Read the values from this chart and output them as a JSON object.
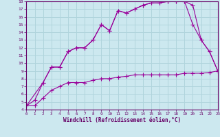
{
  "line1_x": [
    0,
    1,
    2,
    3,
    4,
    5,
    6,
    7,
    8,
    9,
    10,
    11,
    12,
    13,
    14,
    15,
    16,
    17,
    18,
    19,
    20,
    21,
    22,
    23
  ],
  "line1_y": [
    4.5,
    5.2,
    7.5,
    9.5,
    9.5,
    11.5,
    12.0,
    12.0,
    13.0,
    15.0,
    14.2,
    16.8,
    16.5,
    17.0,
    17.5,
    17.8,
    17.8,
    18.0,
    18.0,
    18.0,
    17.5,
    13.0,
    11.5,
    9.0
  ],
  "line2_x": [
    0,
    2,
    3,
    4,
    5,
    6,
    7,
    8,
    9,
    10,
    11,
    12,
    13,
    14,
    15,
    16,
    17,
    18,
    19,
    20,
    21,
    22,
    23
  ],
  "line2_y": [
    4.5,
    7.5,
    9.5,
    9.5,
    11.5,
    12.0,
    12.0,
    13.0,
    15.0,
    14.2,
    16.8,
    16.5,
    17.0,
    17.5,
    17.8,
    17.8,
    18.0,
    18.0,
    18.0,
    15.0,
    13.0,
    11.5,
    9.0
  ],
  "line3_x": [
    0,
    1,
    2,
    3,
    4,
    5,
    6,
    7,
    8,
    9,
    10,
    11,
    12,
    13,
    14,
    15,
    16,
    17,
    18,
    19,
    20,
    21,
    22,
    23
  ],
  "line3_y": [
    4.5,
    4.5,
    5.5,
    6.5,
    7.0,
    7.5,
    7.5,
    7.5,
    7.8,
    8.0,
    8.0,
    8.2,
    8.3,
    8.5,
    8.5,
    8.5,
    8.5,
    8.5,
    8.5,
    8.7,
    8.7,
    8.7,
    8.8,
    9.0
  ],
  "line_color": "#990099",
  "bg_color": "#cce8ef",
  "grid_color": "#b0d4dc",
  "border_color": "#660066",
  "xlabel": "Windchill (Refroidissement éolien,°C)",
  "tick_color": "#660066",
  "ylim": [
    4,
    18
  ],
  "xlim": [
    0,
    23
  ],
  "yticks": [
    4,
    5,
    6,
    7,
    8,
    9,
    10,
    11,
    12,
    13,
    14,
    15,
    16,
    17,
    18
  ],
  "xticks": [
    0,
    1,
    2,
    3,
    4,
    5,
    6,
    7,
    8,
    9,
    10,
    11,
    12,
    13,
    14,
    15,
    16,
    17,
    18,
    19,
    20,
    21,
    22,
    23
  ]
}
